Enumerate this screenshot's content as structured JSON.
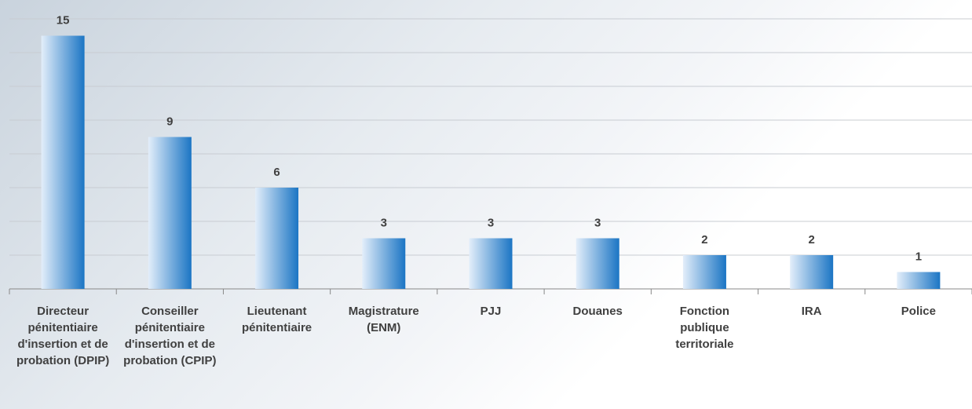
{
  "chart_data": {
    "type": "bar",
    "categories": [
      "Directeur pénitentiaire d'insertion et de probation (DPIP)",
      "Conseiller pénitentiaire d'insertion et de probation (CPIP)",
      "Lieutenant pénitentiaire",
      "Magistrature (ENM)",
      "PJJ",
      "Douanes",
      "Fonction publique territoriale",
      "IRA",
      "Police"
    ],
    "values": [
      15,
      9,
      6,
      3,
      3,
      3,
      2,
      2,
      1
    ],
    "color": "#1b75c4",
    "ylim": [
      0,
      16
    ],
    "yticks": [
      0,
      2,
      4,
      6,
      8,
      10,
      12,
      14,
      16
    ],
    "grid": true
  }
}
